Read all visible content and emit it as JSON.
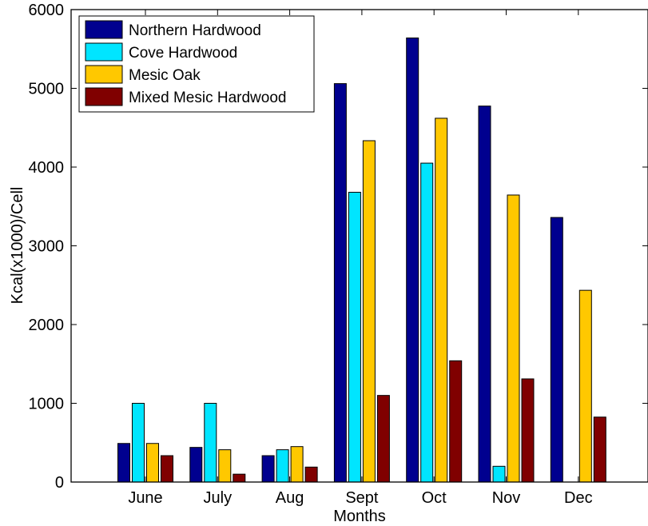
{
  "chart_data": {
    "type": "bar",
    "title": "",
    "xlabel": "Months",
    "ylabel": "Kcal(x1000)/Cell",
    "categories": [
      "June",
      "July",
      "Aug",
      "Sept",
      "Oct",
      "Nov",
      "Dec"
    ],
    "ylim": [
      0,
      6000
    ],
    "yticks": [
      "0",
      "1000",
      "2000",
      "3000",
      "4000",
      "5000",
      "6000"
    ],
    "series": [
      {
        "name": "Northern Hardwood",
        "color": "#00008f",
        "values": [
          490,
          440,
          335,
          5060,
          5640,
          4775,
          3360
        ]
      },
      {
        "name": "Cove Hardwood",
        "color": "#00e5ff",
        "values": [
          1000,
          1000,
          410,
          3680,
          4050,
          200,
          0
        ]
      },
      {
        "name": "Mesic Oak",
        "color": "#ffc800",
        "values": [
          490,
          410,
          450,
          4335,
          4620,
          3645,
          2435
        ]
      },
      {
        "name": "Mixed Mesic Hardwood",
        "color": "#800000",
        "values": [
          335,
          100,
          190,
          1100,
          1540,
          1310,
          825
        ]
      }
    ],
    "legend_position": "top-left",
    "grid": false
  }
}
